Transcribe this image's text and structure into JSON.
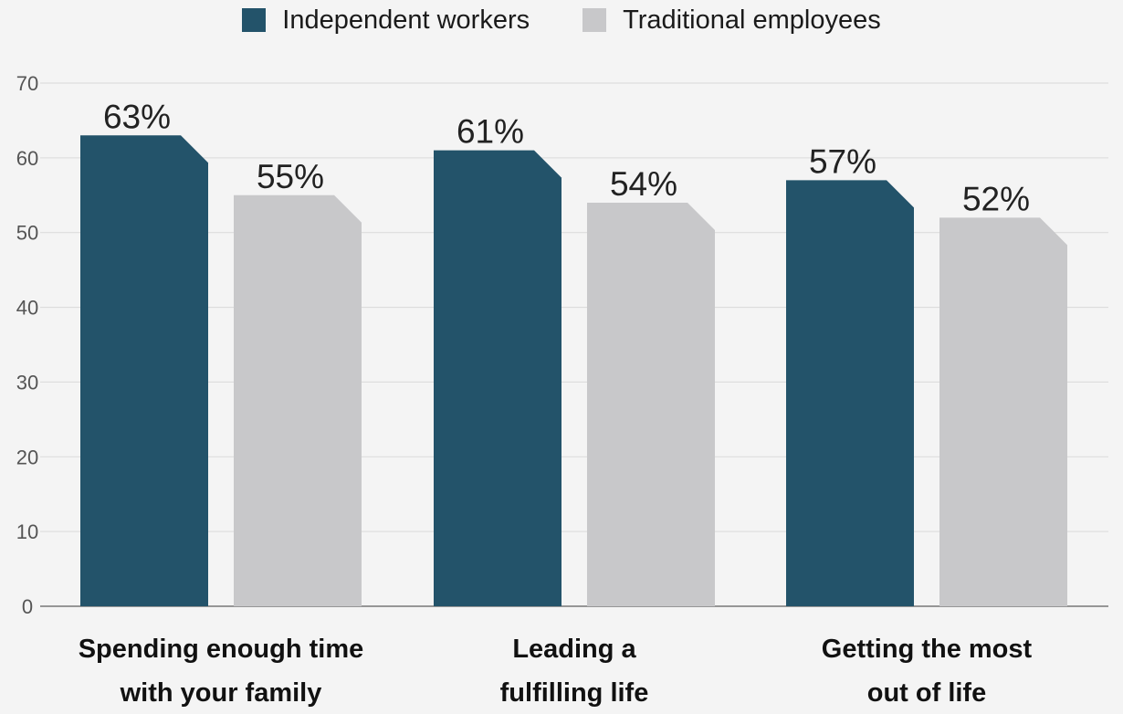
{
  "chart_data": {
    "type": "bar",
    "categories": [
      [
        "Spending enough time",
        "with your family"
      ],
      [
        "Leading a",
        "fulfilling life"
      ],
      [
        "Getting the most",
        "out of life"
      ]
    ],
    "series": [
      {
        "name": "Independent workers",
        "values": [
          63,
          61,
          57
        ],
        "labels": [
          "63%",
          "61%",
          "57%"
        ],
        "color": "#23536a"
      },
      {
        "name": "Traditional employees",
        "values": [
          55,
          54,
          52
        ],
        "labels": [
          "55%",
          "54%",
          "52%"
        ],
        "color": "#c8c8ca"
      }
    ],
    "yticks": [
      "0",
      "10",
      "20",
      "30",
      "40",
      "50",
      "60",
      "70"
    ],
    "ylim": [
      0,
      70
    ],
    "grid": true,
    "legend_position": "top"
  }
}
